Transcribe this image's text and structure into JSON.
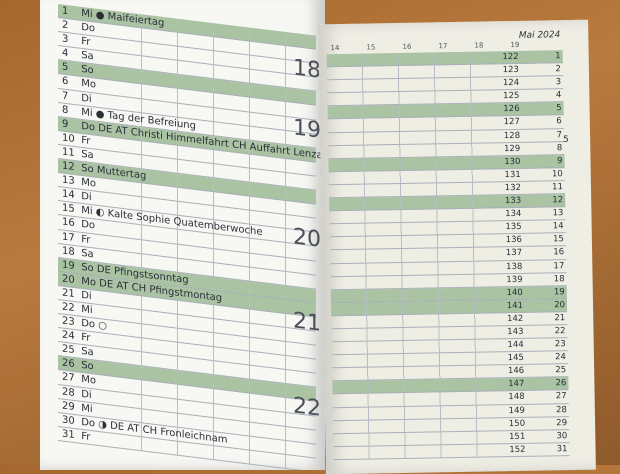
{
  "right_page": {
    "title": "Mai 2024",
    "hours": [
      "14",
      "15",
      "16",
      "17",
      "18",
      "19"
    ],
    "page_number": "5"
  },
  "week_numbers": [
    "18",
    "19",
    "20",
    "21",
    "22"
  ],
  "days": [
    {
      "d": "1",
      "wd": "Mi",
      "note": "● Maifeiertag",
      "green": true,
      "doy": "122"
    },
    {
      "d": "2",
      "wd": "Do",
      "note": "",
      "green": false,
      "doy": "123"
    },
    {
      "d": "3",
      "wd": "Fr",
      "note": "",
      "green": false,
      "doy": "124"
    },
    {
      "d": "4",
      "wd": "Sa",
      "note": "",
      "green": false,
      "doy": "125"
    },
    {
      "d": "5",
      "wd": "So",
      "note": "",
      "green": true,
      "doy": "126"
    },
    {
      "d": "6",
      "wd": "Mo",
      "note": "",
      "green": false,
      "doy": "127"
    },
    {
      "d": "7",
      "wd": "Di",
      "note": "",
      "green": false,
      "doy": "128"
    },
    {
      "d": "8",
      "wd": "Mi",
      "note": "● Tag der Befreiung",
      "green": false,
      "doy": "129"
    },
    {
      "d": "9",
      "wd": "Do",
      "note": "DE AT Christi Himmelfahrt  CH Auffahrt Lenzamag",
      "green": true,
      "doy": "130"
    },
    {
      "d": "10",
      "wd": "Fr",
      "note": "",
      "green": false,
      "doy": "131"
    },
    {
      "d": "11",
      "wd": "Sa",
      "note": "",
      "green": false,
      "doy": "132"
    },
    {
      "d": "12",
      "wd": "So",
      "note": "Muttertag",
      "green": true,
      "doy": "133"
    },
    {
      "d": "13",
      "wd": "Mo",
      "note": "",
      "green": false,
      "doy": "134"
    },
    {
      "d": "14",
      "wd": "Di",
      "note": "",
      "green": false,
      "doy": "135"
    },
    {
      "d": "15",
      "wd": "Mi",
      "note": "◐ Kalte Sophie  Quatemberwoche",
      "green": false,
      "doy": "136"
    },
    {
      "d": "16",
      "wd": "Do",
      "note": "",
      "green": false,
      "doy": "137"
    },
    {
      "d": "17",
      "wd": "Fr",
      "note": "",
      "green": false,
      "doy": "138"
    },
    {
      "d": "18",
      "wd": "Sa",
      "note": "",
      "green": false,
      "doy": "139"
    },
    {
      "d": "19",
      "wd": "So",
      "note": "DE Pfingstsonntag",
      "green": true,
      "doy": "140"
    },
    {
      "d": "20",
      "wd": "Mo",
      "note": "DE AT CH Pfingstmontag",
      "green": true,
      "doy": "141"
    },
    {
      "d": "21",
      "wd": "Di",
      "note": "",
      "green": false,
      "doy": "142"
    },
    {
      "d": "22",
      "wd": "Mi",
      "note": "",
      "green": false,
      "doy": "143"
    },
    {
      "d": "23",
      "wd": "Do",
      "note": "○",
      "green": false,
      "doy": "144"
    },
    {
      "d": "24",
      "wd": "Fr",
      "note": "",
      "green": false,
      "doy": "145"
    },
    {
      "d": "25",
      "wd": "Sa",
      "note": "",
      "green": false,
      "doy": "146"
    },
    {
      "d": "26",
      "wd": "So",
      "note": "",
      "green": true,
      "doy": "147"
    },
    {
      "d": "27",
      "wd": "Mo",
      "note": "",
      "green": false,
      "doy": "148"
    },
    {
      "d": "28",
      "wd": "Di",
      "note": "",
      "green": false,
      "doy": "149"
    },
    {
      "d": "29",
      "wd": "Mi",
      "note": "",
      "green": false,
      "doy": "150"
    },
    {
      "d": "30",
      "wd": "Do",
      "note": "◑ DE AT CH Fronleichnam",
      "green": false,
      "doy": "151"
    },
    {
      "d": "31",
      "wd": "Fr",
      "note": "",
      "green": false,
      "doy": "152"
    }
  ]
}
